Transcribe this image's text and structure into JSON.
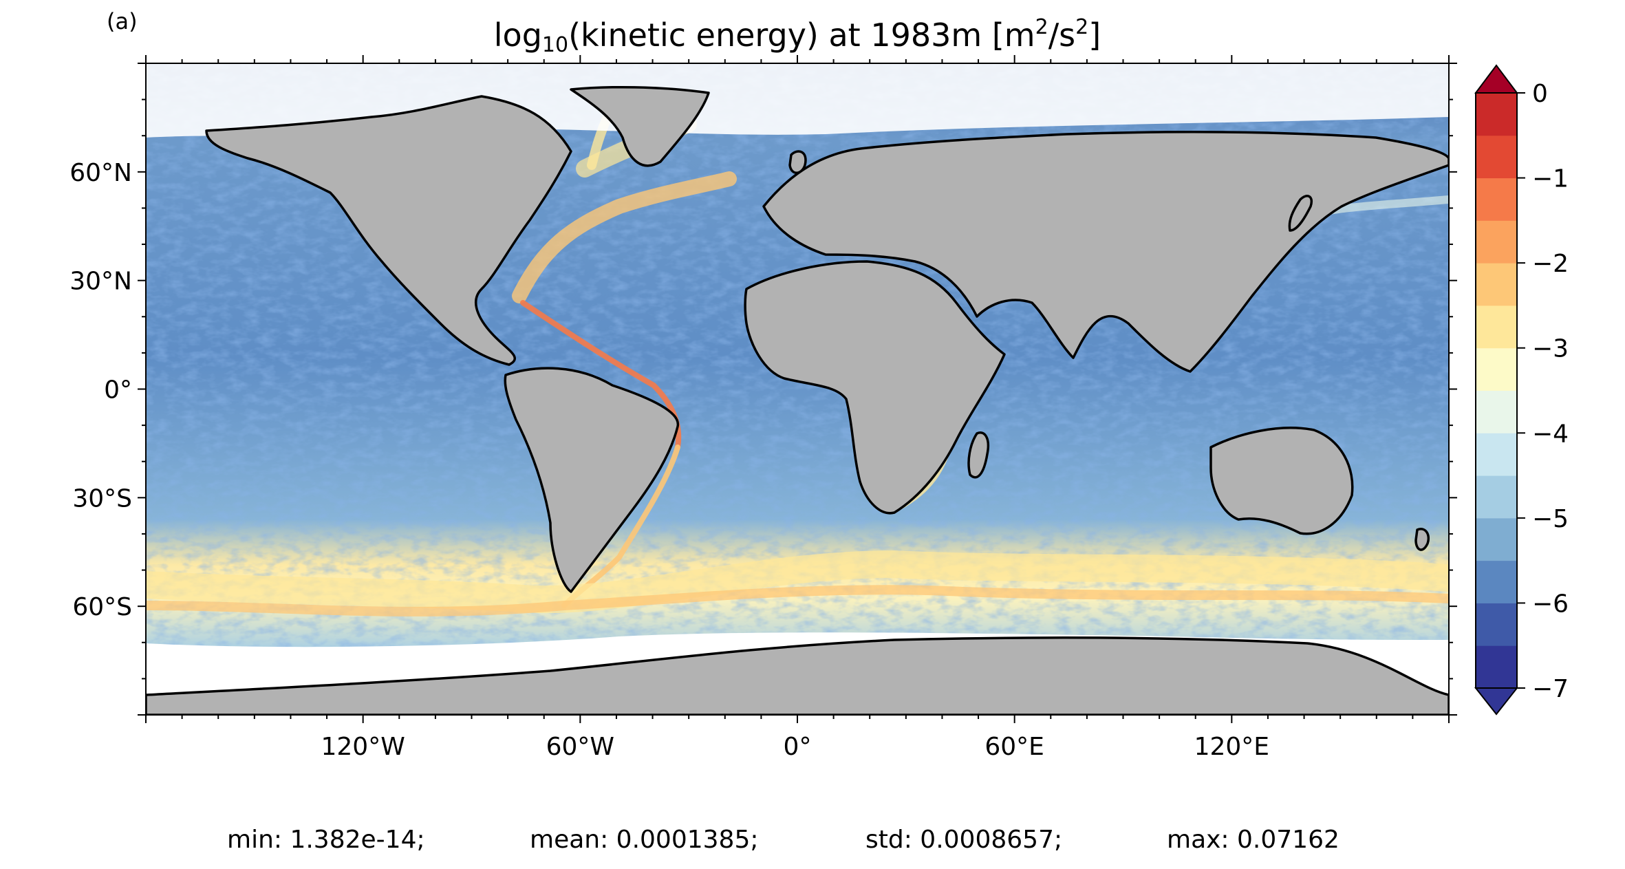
{
  "panel_label": "(a)",
  "title": {
    "prefix": "log",
    "subscript": "10",
    "middle": "(kinetic energy) at 1983m [m",
    "sup1": "2",
    "slash": "/s",
    "sup2": "2",
    "suffix": "]"
  },
  "map": {
    "projection": "equirectangular",
    "lon_range": [
      -180,
      180
    ],
    "lat_range": [
      -90,
      90
    ],
    "land_color": "#b2b2b2",
    "coast_color": "#000000",
    "no_data_color": "#ffffff"
  },
  "x_ticks": [
    "120°W",
    "60°W",
    "0°",
    "60°E",
    "120°E"
  ],
  "x_tick_values": [
    -120,
    -60,
    0,
    60,
    120
  ],
  "y_ticks": [
    "60°N",
    "30°N",
    "0°",
    "30°S",
    "60°S"
  ],
  "y_tick_values": [
    60,
    30,
    0,
    -30,
    -60
  ],
  "colorbar": {
    "labels": [
      "0",
      "−1",
      "−2",
      "−3",
      "−4",
      "−5",
      "−6",
      "−7"
    ],
    "label_values": [
      0,
      -1,
      -2,
      -3,
      -4,
      -5,
      -6,
      -7
    ],
    "range": [
      -7,
      0
    ],
    "extend": "both",
    "colors": [
      "#313695",
      "#3f5aa8",
      "#5b87c0",
      "#7fadd1",
      "#a5cde3",
      "#c9e6f0",
      "#e9f6ea",
      "#fdfac8",
      "#fee79a",
      "#fdc777",
      "#fba35e",
      "#f57a49",
      "#e34933",
      "#cb2a29",
      "#a50026"
    ]
  },
  "stats": {
    "min": "min: 1.382e-14;",
    "mean": "mean: 0.0001385;",
    "std": "std: 0.0008657;",
    "max": "max: 0.07162"
  }
}
